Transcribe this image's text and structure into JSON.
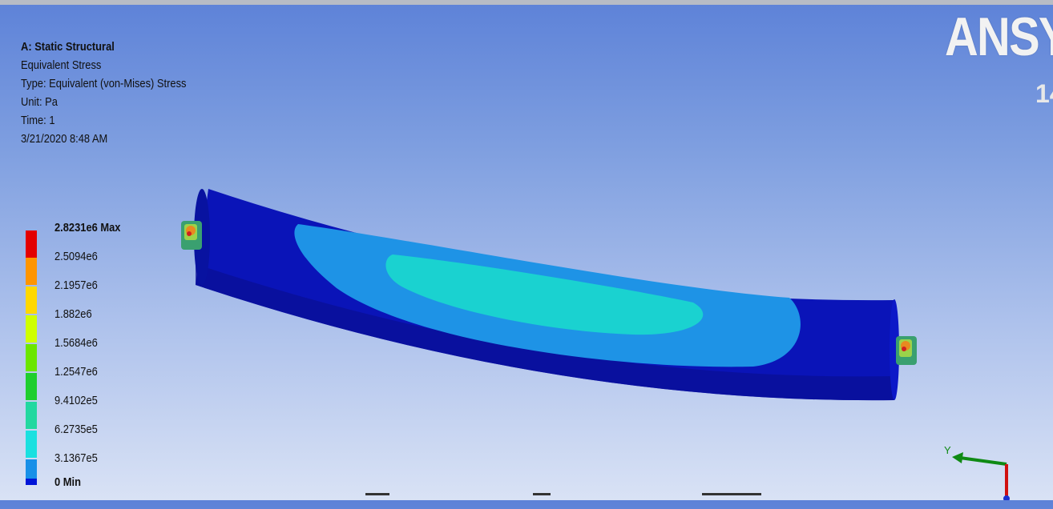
{
  "viewport": {
    "title": "A: Static Structural",
    "result_name": "Equivalent Stress",
    "result_type": "Type: Equivalent (von-Mises) Stress",
    "unit": "Unit: Pa",
    "time": "Time: 1",
    "timestamp": "3/21/2020 8:48 AM"
  },
  "legend": {
    "entries": [
      {
        "label": "2.8231e6 Max",
        "color": "#e30000"
      },
      {
        "label": "2.5094e6",
        "color": "#ff9500"
      },
      {
        "label": "2.1957e6",
        "color": "#ffd800"
      },
      {
        "label": "1.882e6",
        "color": "#cfff00"
      },
      {
        "label": "1.5684e6",
        "color": "#6be600"
      },
      {
        "label": "1.2547e6",
        "color": "#1fce2e"
      },
      {
        "label": "9.4102e5",
        "color": "#22d8a0"
      },
      {
        "label": "6.2735e5",
        "color": "#1ae0e0"
      },
      {
        "label": "3.1367e5",
        "color": "#1890e8"
      },
      {
        "label": "0 Min",
        "color": "#0015d8"
      }
    ]
  },
  "branding": {
    "logo_text": "ANSY",
    "version_text": "14"
  },
  "triad": {
    "y_label": "Y"
  },
  "colors": {
    "beam_base": "#0a14b8",
    "beam_dark": "#0a108a",
    "contour_1": "#1e93e6",
    "contour_2": "#1ad4d4",
    "axis_y": "#0f8a14",
    "axis_z": "#d01010"
  }
}
